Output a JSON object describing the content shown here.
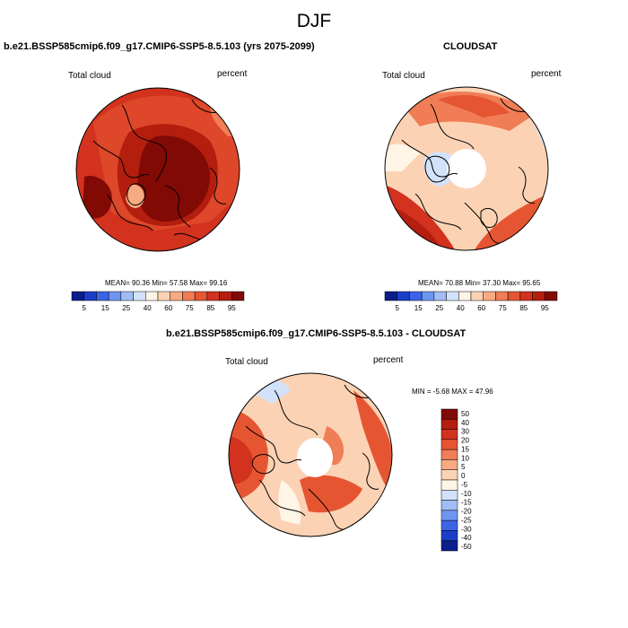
{
  "title": "DJF",
  "panels": [
    {
      "title": "b.e21.BSSP585cmip6.f09_g17.CMIP6-SSP5-8.5.103 (yrs 2075-2099)",
      "left_label": "Total cloud",
      "right_label": "percent",
      "stats": "MEAN=  90.36  Min=  57.58  Max=  99.16"
    },
    {
      "title": "CLOUDSAT",
      "left_label": "Total cloud",
      "right_label": "percent",
      "stats": "MEAN=  70.88  Min=  37.30  Max=  95.65"
    },
    {
      "title": "b.e21.BSSP585cmip6.f09_g17.CMIP6-SSP5-8.5.103 - CLOUDSAT",
      "left_label": "Total cloud",
      "right_label": "percent",
      "stats": "MIN =  -5.68 MAX =  47.96"
    }
  ],
  "colorbar_abs": {
    "colors": [
      "#0a1e8c",
      "#1a3ec8",
      "#3c64e6",
      "#6e96f0",
      "#a0bef5",
      "#d2e2fa",
      "#fff5e6",
      "#fcd2b4",
      "#f8aa82",
      "#f07d55",
      "#e65532",
      "#d2321e",
      "#b41e0f",
      "#820a05"
    ],
    "labels": [
      "5",
      "15",
      "25",
      "40",
      "60",
      "75",
      "85",
      "95"
    ]
  },
  "colorbar_diff": {
    "colors": [
      "#820a05",
      "#b41e0f",
      "#d2321e",
      "#e65532",
      "#f07d55",
      "#f8aa82",
      "#fcd2b4",
      "#fff5e6",
      "#d2e2fa",
      "#a0bef5",
      "#6e96f0",
      "#3c64e6",
      "#1a3ec8",
      "#0a1e8c"
    ],
    "labels": [
      "50",
      "40",
      "30",
      "20",
      "15",
      "10",
      "5",
      "0",
      "-5",
      "-10",
      "-15",
      "-20",
      "-25",
      "-30",
      "-40",
      "-50"
    ]
  }
}
